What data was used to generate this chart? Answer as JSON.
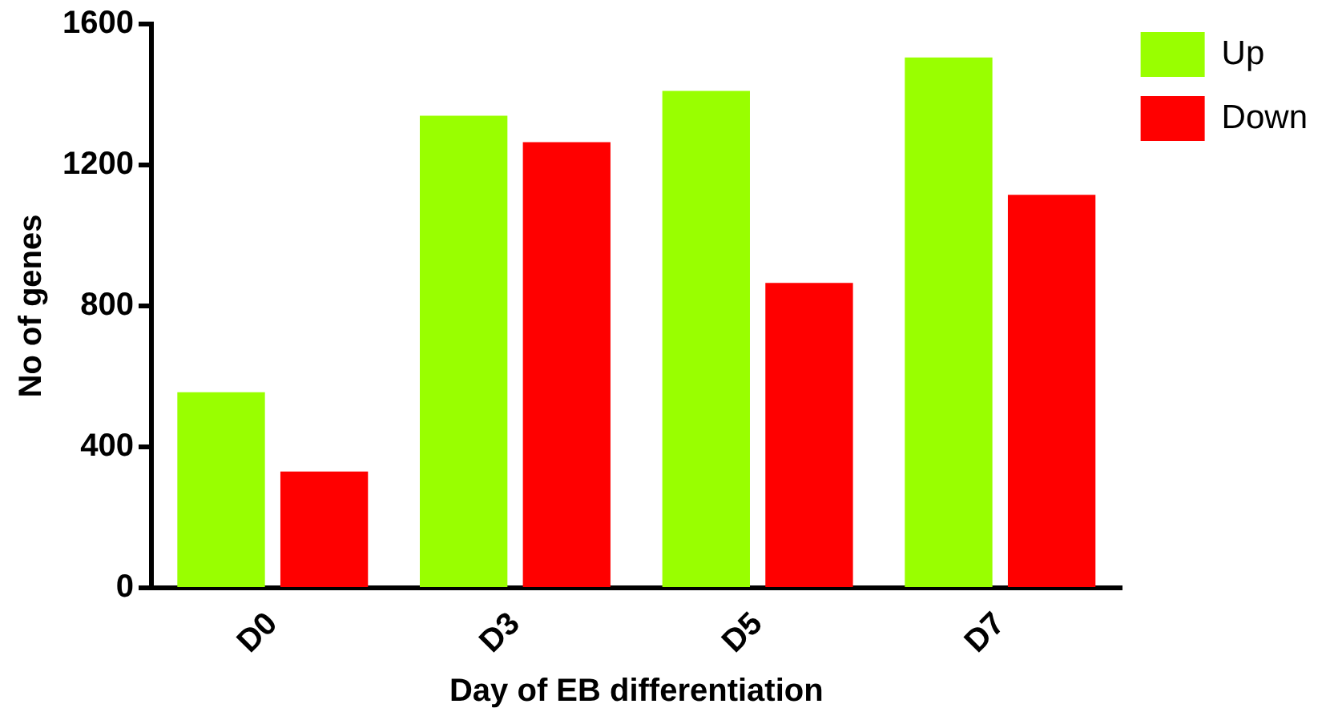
{
  "chart_data": {
    "type": "bar",
    "xlabel": "Day of EB differentiation",
    "ylabel": "No of genes",
    "categories": [
      "D0",
      "D3",
      "D5",
      "D7"
    ],
    "series": [
      {
        "name": "Up",
        "color": "#99ff00",
        "values": [
          555,
          1340,
          1410,
          1505
        ]
      },
      {
        "name": "Down",
        "color": "#ff0000",
        "values": [
          330,
          1265,
          865,
          1115
        ]
      }
    ],
    "ylim": [
      0,
      1600
    ],
    "yticks": [
      0,
      400,
      800,
      1200,
      1600
    ],
    "grid": false,
    "legend": "top right"
  }
}
